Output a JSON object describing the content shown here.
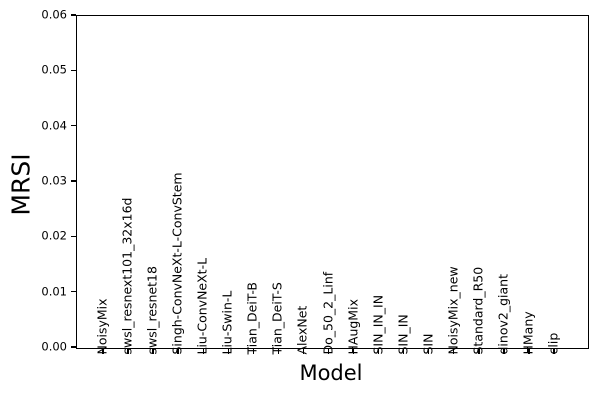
{
  "chart_data": {
    "type": "bar",
    "title": "",
    "xlabel": "Model",
    "ylabel": "MRSI",
    "categories": [
      "NoisyMix",
      "swsl_resnext101_32x16d",
      "swsl_resnet18",
      "Singh-ConvNeXt-L-ConvStem",
      "Liu-ConvNeXt-L",
      "Liu-Swin-L",
      "Tian_DeiT-B",
      "Tian_DeiT-S",
      "AlexNet",
      "Do_50_2_Linf",
      "HAugMix",
      "SIN_IN_IN",
      "SIN_IN",
      "SIN",
      "NoisyMix_new",
      "Standard_R50",
      "dinov2_giant",
      "HMany",
      "clip"
    ],
    "values": [
      0,
      0,
      0,
      0,
      0,
      0,
      0,
      0,
      0,
      0,
      0,
      0,
      0,
      0,
      0,
      0,
      0,
      0,
      0
    ],
    "ylim": [
      0,
      0.06
    ],
    "ytick_labels": [
      "0.00",
      "0.01",
      "0.02",
      "0.03",
      "0.04",
      "0.05",
      "0.06"
    ],
    "ytick_values": [
      0,
      0.01,
      0.02,
      0.03,
      0.04,
      0.05,
      0.06
    ],
    "grid": false,
    "legend": "none",
    "xtick_label_rotation_deg": 90,
    "xtick_labels_inside_plot": true,
    "axis_color": "#000000",
    "text_color": "#000000",
    "background_color": "#ffffff"
  }
}
